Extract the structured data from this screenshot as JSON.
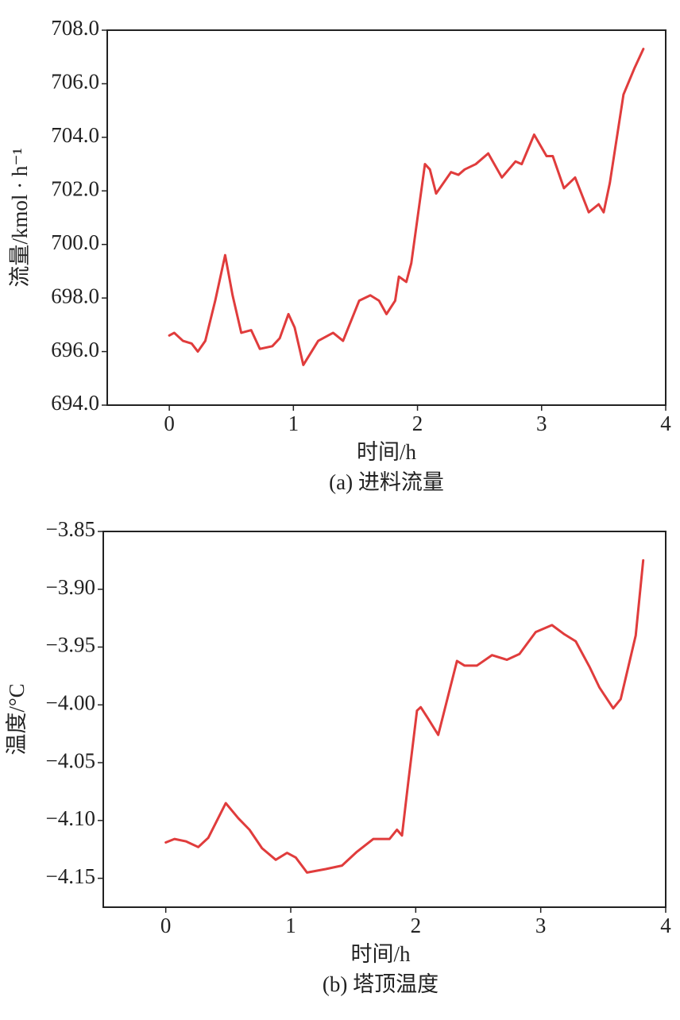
{
  "chart_data": [
    {
      "type": "line",
      "ylabel": "流量/kmol · h⁻¹",
      "xlabel": "时间/h",
      "caption": "(a) 进料流量",
      "xlim": [
        -0.5,
        4
      ],
      "xticks": [
        0,
        1,
        2,
        3,
        4
      ],
      "ylim": [
        694,
        708
      ],
      "yticks": [
        {
          "value": 694,
          "label": "694.0"
        },
        {
          "value": 696,
          "label": "696.0"
        },
        {
          "value": 698,
          "label": "698.0"
        },
        {
          "value": 700,
          "label": "700.0"
        },
        {
          "value": 702,
          "label": "702.0"
        },
        {
          "value": 704,
          "label": "704.0"
        },
        {
          "value": 706,
          "label": "706.0"
        },
        {
          "value": 708,
          "label": "708.0"
        }
      ],
      "series": [
        {
          "color": "#e03c3c",
          "x": [
            0,
            0.04,
            0.11,
            0.18,
            0.23,
            0.29,
            0.37,
            0.45,
            0.51,
            0.58,
            0.66,
            0.73,
            0.83,
            0.89,
            0.96,
            1.01,
            1.08,
            1.2,
            1.32,
            1.4,
            1.53,
            1.62,
            1.69,
            1.75,
            1.82,
            1.85,
            1.91,
            1.95,
            2.06,
            2.1,
            2.15,
            2.27,
            2.33,
            2.38,
            2.47,
            2.57,
            2.68,
            2.79,
            2.84,
            2.94,
            3.04,
            3.09,
            3.18,
            3.27,
            3.38,
            3.46,
            3.5,
            3.55,
            3.66,
            3.75,
            3.82
          ],
          "values": [
            696.6,
            696.7,
            696.4,
            696.3,
            696.0,
            696.4,
            697.9,
            699.6,
            698.1,
            696.7,
            696.8,
            696.1,
            696.2,
            696.5,
            697.4,
            696.9,
            695.5,
            696.4,
            696.7,
            696.4,
            697.9,
            698.1,
            697.9,
            697.4,
            697.9,
            698.8,
            698.6,
            699.3,
            703.0,
            702.8,
            701.9,
            702.7,
            702.6,
            702.8,
            703.0,
            703.4,
            702.5,
            703.1,
            703.0,
            704.1,
            703.3,
            703.3,
            702.1,
            702.5,
            701.2,
            701.5,
            701.2,
            702.3,
            705.6,
            706.6,
            707.3
          ]
        }
      ]
    },
    {
      "type": "line",
      "ylabel": "温度/°C",
      "xlabel": "时间/h",
      "caption": "(b) 塔顶温度",
      "xlim": [
        -0.5,
        4
      ],
      "xticks": [
        0,
        1,
        2,
        3,
        4
      ],
      "ylim": [
        -4.175,
        -3.85
      ],
      "yticks": [
        {
          "value": -4.15,
          "label": "−4.15"
        },
        {
          "value": -4.1,
          "label": "−4.10"
        },
        {
          "value": -4.05,
          "label": "−4.05"
        },
        {
          "value": -4.0,
          "label": "−4.00"
        },
        {
          "value": -3.95,
          "label": "−3.95"
        },
        {
          "value": -3.9,
          "label": "−3.90"
        },
        {
          "value": -3.85,
          "label": "−3.85"
        }
      ],
      "series": [
        {
          "color": "#e03c3c",
          "x": [
            0,
            0.07,
            0.16,
            0.26,
            0.34,
            0.48,
            0.58,
            0.67,
            0.77,
            0.88,
            0.97,
            1.04,
            1.13,
            1.28,
            1.41,
            1.53,
            1.66,
            1.79,
            1.85,
            1.89,
            1.94,
            2.01,
            2.04,
            2.1,
            2.18,
            2.33,
            2.39,
            2.49,
            2.61,
            2.73,
            2.83,
            2.96,
            3.09,
            3.19,
            3.28,
            3.39,
            3.47,
            3.58,
            3.64,
            3.76,
            3.82
          ],
          "values": [
            -4.119,
            -4.116,
            -4.118,
            -4.123,
            -4.115,
            -4.085,
            -4.098,
            -4.108,
            -4.124,
            -4.134,
            -4.128,
            -4.132,
            -4.145,
            -4.142,
            -4.139,
            -4.127,
            -4.116,
            -4.116,
            -4.108,
            -4.113,
            -4.067,
            -4.005,
            -4.002,
            -4.012,
            -4.026,
            -3.962,
            -3.966,
            -3.966,
            -3.957,
            -3.961,
            -3.956,
            -3.937,
            -3.931,
            -3.939,
            -3.945,
            -3.967,
            -3.985,
            -4.003,
            -3.995,
            -3.94,
            -3.875
          ]
        }
      ]
    }
  ]
}
